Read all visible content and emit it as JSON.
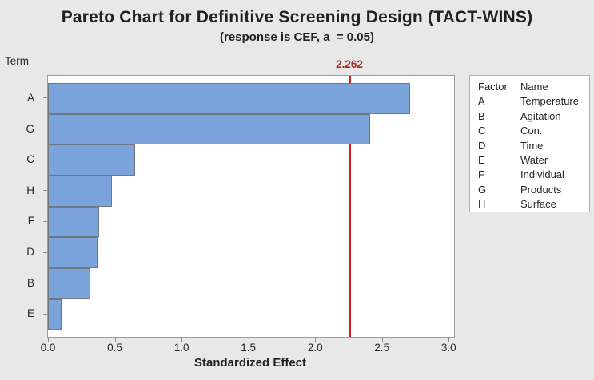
{
  "chart_data": {
    "type": "bar",
    "orientation": "horizontal",
    "title": "Pareto Chart for Definitive Screening Design (TACT-WINS)",
    "subtitle": "(response is CEF, a  = 0.05)",
    "xlabel": "Standardized Effect",
    "ylabel": "Term",
    "categories": [
      "A",
      "G",
      "C",
      "H",
      "F",
      "D",
      "B",
      "E"
    ],
    "values": [
      2.71,
      2.41,
      0.65,
      0.48,
      0.38,
      0.37,
      0.32,
      0.1
    ],
    "xlim": [
      0,
      3.04
    ],
    "xticks": [
      0.0,
      0.5,
      1.0,
      1.5,
      2.0,
      2.5,
      3.0
    ],
    "xtick_labels": [
      "0.0",
      "0.5",
      "1.0",
      "1.5",
      "2.0",
      "2.5",
      "3.0"
    ],
    "grid": false,
    "reference_line": {
      "value": 2.262,
      "label": "2.262",
      "line_color": "#d42020",
      "label_color": "#9e2b25"
    },
    "colors": {
      "bar_fill": "#7aa4db",
      "bar_border": "#70797f",
      "background": "#e8e8e8",
      "plot_background": "#ffffff"
    },
    "legend": {
      "position": "right",
      "header": [
        "Factor",
        "Name"
      ],
      "rows": [
        [
          "A",
          "Temperature"
        ],
        [
          "B",
          "Agitation"
        ],
        [
          "C",
          "Con."
        ],
        [
          "D",
          "Time"
        ],
        [
          "E",
          "Water"
        ],
        [
          "F",
          "Individual"
        ],
        [
          "G",
          "Products"
        ],
        [
          "H",
          "Surface"
        ]
      ]
    }
  }
}
